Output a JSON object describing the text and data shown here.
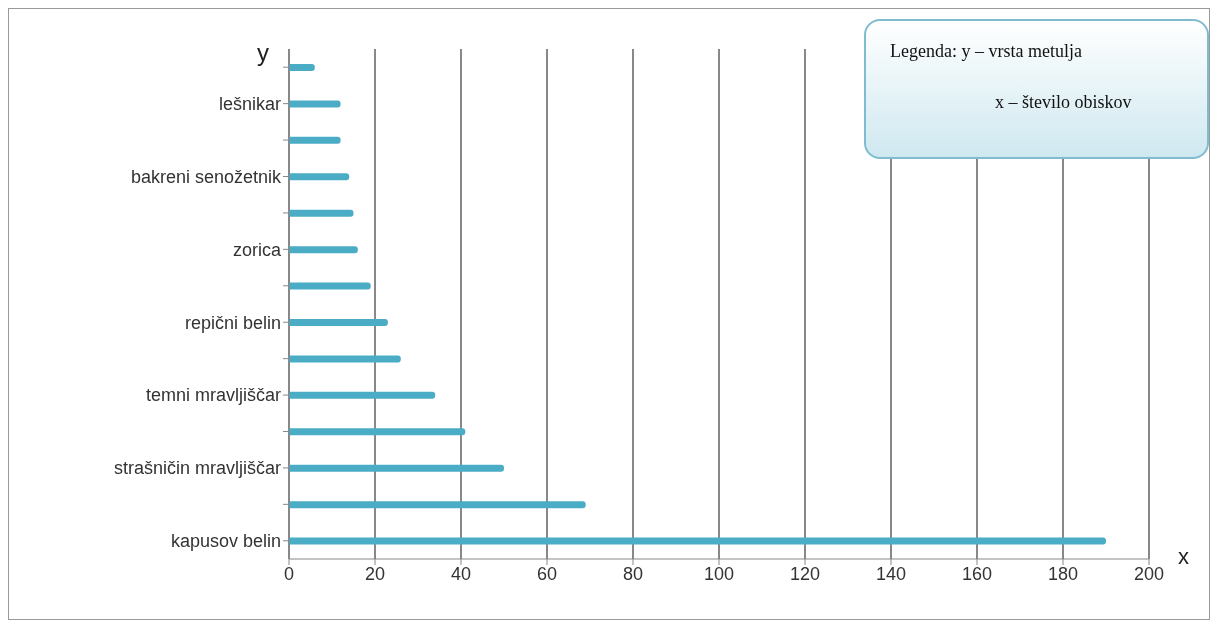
{
  "chart_data": {
    "type": "bar",
    "orientation": "horizontal",
    "categories": [
      null,
      "lešnikar",
      null,
      "bakreni senožetnik",
      null,
      "zorica",
      null,
      "repični belin",
      null,
      "temni mravljiščar",
      null,
      "strašničin mravljiščar",
      null,
      "kapusov belin"
    ],
    "values": [
      6,
      12,
      12,
      14,
      15,
      16,
      19,
      23,
      26,
      34,
      41,
      50,
      69,
      190
    ],
    "color": "#4bacc6",
    "xlim": [
      0,
      200
    ],
    "xticks": [
      0,
      20,
      40,
      60,
      80,
      100,
      120,
      140,
      160,
      180,
      200
    ],
    "xlabel": "x",
    "ylabel": "y",
    "grid": "x",
    "annotations": [
      "Legenda:  y – vrsta metulja",
      "x – število obiskov"
    ]
  }
}
